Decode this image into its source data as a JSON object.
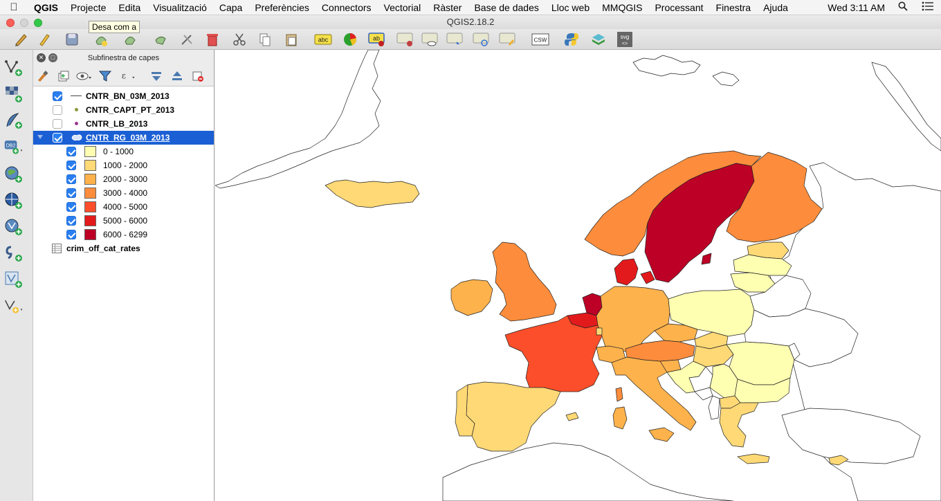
{
  "menubar": {
    "app": "QGIS",
    "items": [
      "Projecte",
      "Edita",
      "Visualització",
      "Capa",
      "Preferències",
      "Connectors",
      "Vectorial",
      "Ràster",
      "Base de dades",
      "Lloc web",
      "MMQGIS",
      "Processant",
      "Finestra",
      "Ajuda"
    ],
    "clock": "Wed 3:11 AM"
  },
  "window": {
    "title": "QGIS2.18.2"
  },
  "tooltip": "Desa com a",
  "layers_panel": {
    "title": "Subfinestra de capes",
    "layers": [
      {
        "name": "CNTR_BN_03M_2013",
        "checked": true
      },
      {
        "name": "CNTR_CAPT_PT_2013",
        "checked": false
      },
      {
        "name": "CNTR_LB_2013",
        "checked": false
      },
      {
        "name": "CNTR_RG_03M_2013",
        "checked": true
      },
      {
        "name": "crim_off_cat_rates"
      }
    ],
    "classes": [
      {
        "label": "0 - 1000",
        "color": "#ffffb2"
      },
      {
        "label": "1000 - 2000",
        "color": "#fed976"
      },
      {
        "label": "2000 - 3000",
        "color": "#feb24c"
      },
      {
        "label": "3000 - 4000",
        "color": "#fd8d3c"
      },
      {
        "label": "4000 - 5000",
        "color": "#fc4e2a"
      },
      {
        "label": "5000 - 6000",
        "color": "#e31a1c"
      },
      {
        "label": "6000 - 6299",
        "color": "#bd0026"
      }
    ]
  },
  "toolbar": {
    "csw_label": "CSW",
    "svg_label": "svg",
    "abc_label": "abc",
    "ab_label": "ab",
    "db2_label": "DB2"
  },
  "colors": {
    "selection": "#1a5fd4",
    "checkbox": "#2a7ff0"
  }
}
